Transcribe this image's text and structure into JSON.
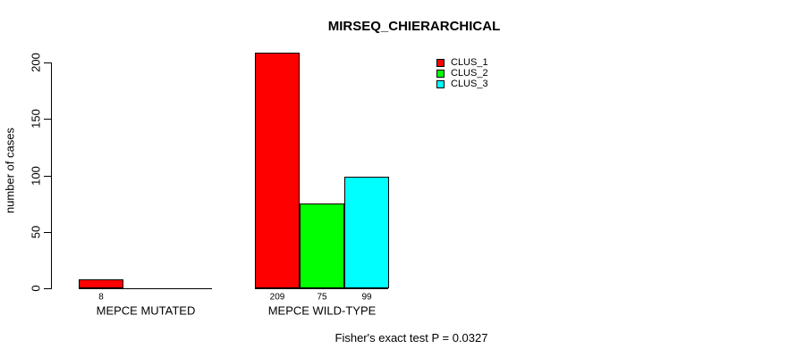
{
  "chart_data": {
    "type": "bar",
    "title": "MIRSEQ_CHIERARCHICAL",
    "xlabel": "",
    "ylabel": "number of cases",
    "categories": [
      "MEPCE MUTATED",
      "MEPCE WILD-TYPE"
    ],
    "series": [
      {
        "name": "CLUS_1",
        "color": "#FF0000",
        "values": [
          8,
          209
        ]
      },
      {
        "name": "CLUS_2",
        "color": "#00FF00",
        "values": [
          0,
          75
        ]
      },
      {
        "name": "CLUS_3",
        "color": "#00FFFF",
        "values": [
          0,
          99
        ]
      }
    ],
    "bar_value_labels": [
      [
        "8",
        null,
        null
      ],
      [
        "209",
        "75",
        "99"
      ]
    ],
    "yticks": [
      0,
      50,
      100,
      150,
      200
    ],
    "ylim": [
      0,
      210
    ],
    "grid": false,
    "legend_position": "top-right-inside",
    "legend_entries": [
      "CLUS_1",
      "CLUS_2",
      "CLUS_3"
    ],
    "annotation": "Fisher's exact test P = 0.0327",
    "bar_border_color": "#000000",
    "background_color": "#ffffff",
    "text_color": "#000000"
  }
}
